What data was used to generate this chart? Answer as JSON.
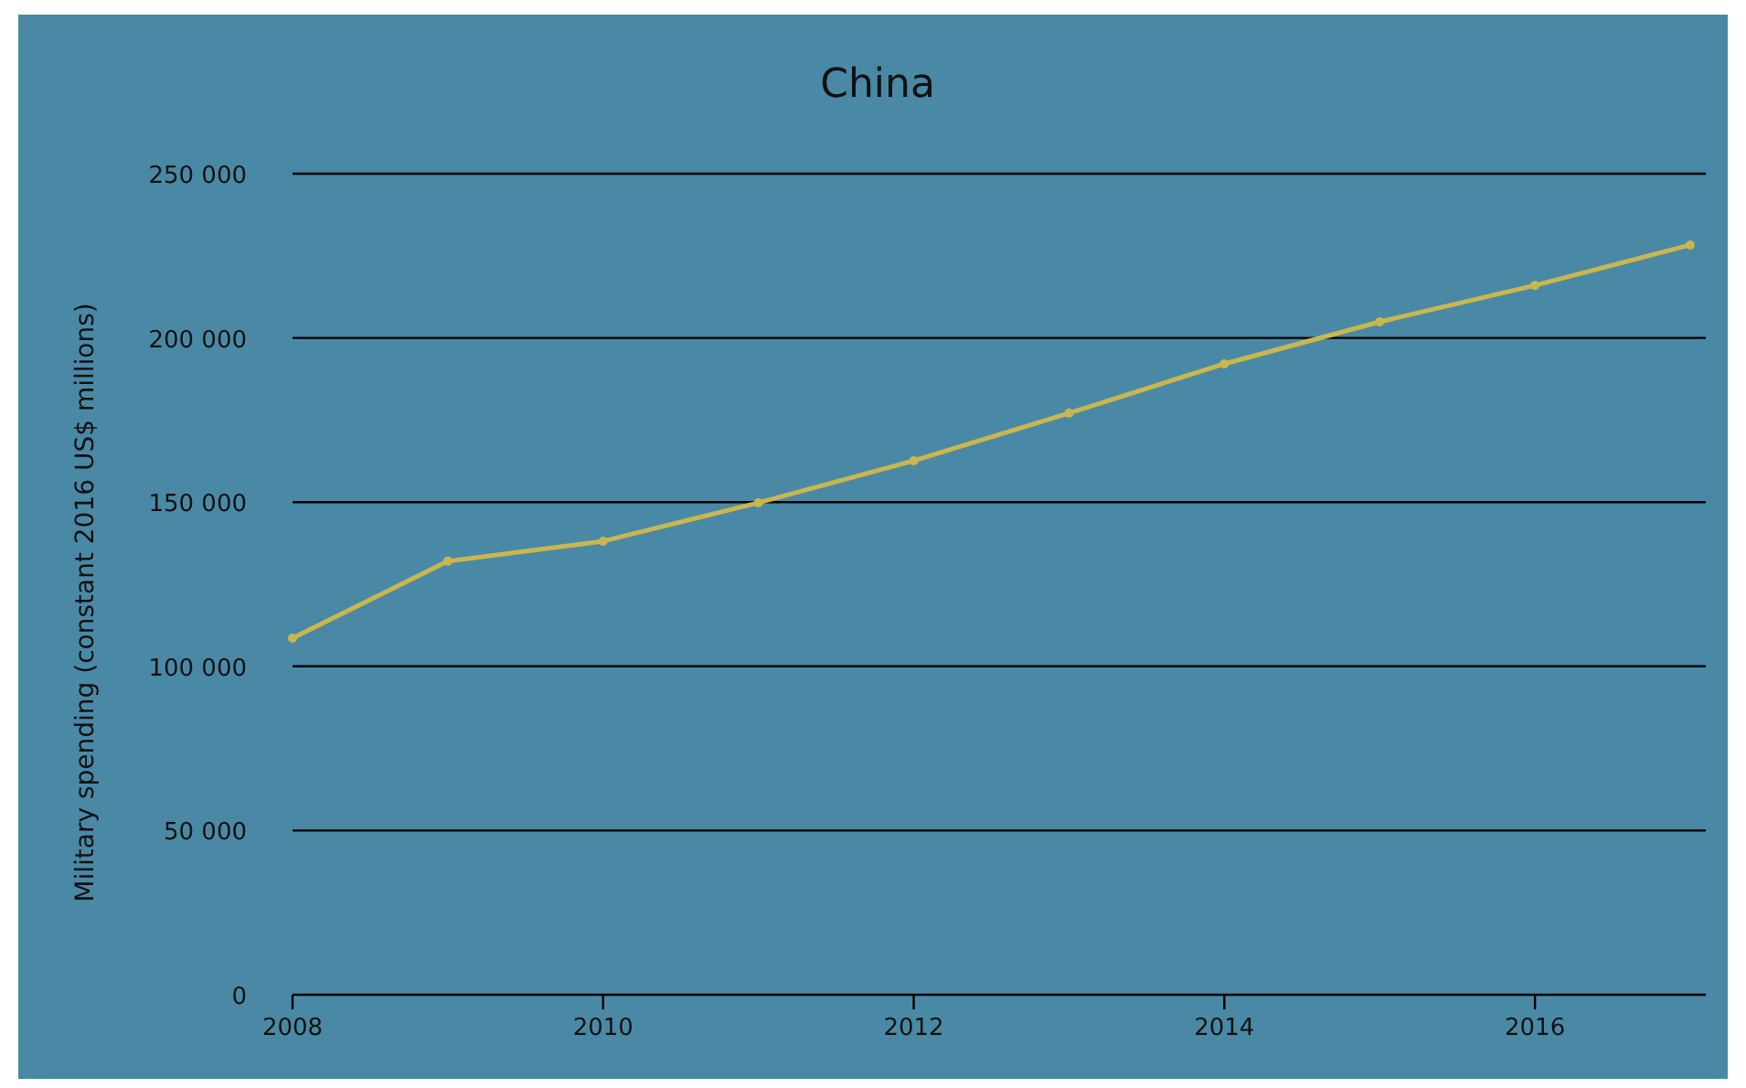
{
  "chart_data": {
    "type": "line",
    "title": "China",
    "ylabel": "Military spending (constant 2016 US$ millions)",
    "x": [
      2008,
      2009,
      2010,
      2011,
      2012,
      2013,
      2014,
      2015,
      2016,
      2017
    ],
    "series": [
      {
        "color": "#c9b74e",
        "values": [
          108600,
          132000,
          138100,
          149800,
          162600,
          177100,
          192100,
          204900,
          216000,
          228300
        ]
      }
    ],
    "xlim": [
      2008,
      2017.1
    ],
    "xticks": [
      2008,
      2010,
      2012,
      2014,
      2016
    ],
    "ylim": [
      0,
      250000
    ],
    "yticks": [
      {
        "value": 0,
        "label": "0"
      },
      {
        "value": 50000,
        "label": "50 000"
      },
      {
        "value": 100000,
        "label": "100 000"
      },
      {
        "value": 150000,
        "label": "150 000"
      },
      {
        "value": 200000,
        "label": "200 000"
      },
      {
        "value": 250000,
        "label": "250 000"
      }
    ],
    "grid": "y",
    "marker": "circle",
    "line_style": "solid"
  }
}
